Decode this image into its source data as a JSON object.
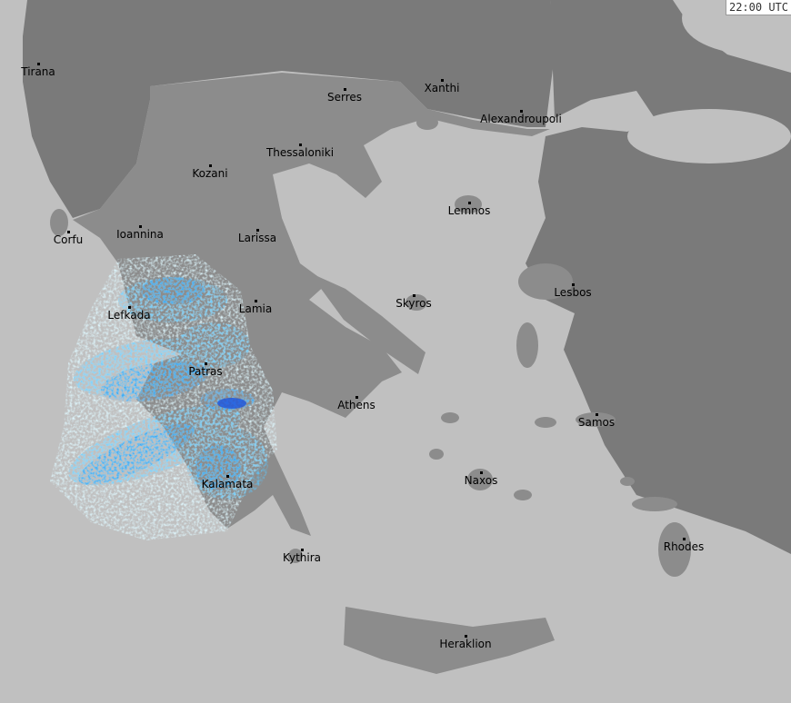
{
  "timestamp": "22:00 UTC",
  "colors": {
    "sea": "#c0c0c0",
    "greece_land": "#8c8c8c",
    "foreign_land": "#7a7a7a",
    "radar_light": "#dff8ff",
    "radar_mid": "#5cc8ff",
    "radar_strong": "#2a9cf0",
    "radar_heavy": "#1a55e0"
  },
  "cities": [
    "Tirana",
    "Serres",
    "Xanthi",
    "Alexandroupoli",
    "Thessaloniki",
    "Kozani",
    "Lemnos",
    "Corfu",
    "Ioannina",
    "Larissa",
    "Skyros",
    "Lesbos",
    "Lefkada",
    "Lamia",
    "Patras",
    "Athens",
    "Samos",
    "Kalamata",
    "Naxos",
    "Rhodes",
    "Kythira",
    "Heraklion"
  ]
}
